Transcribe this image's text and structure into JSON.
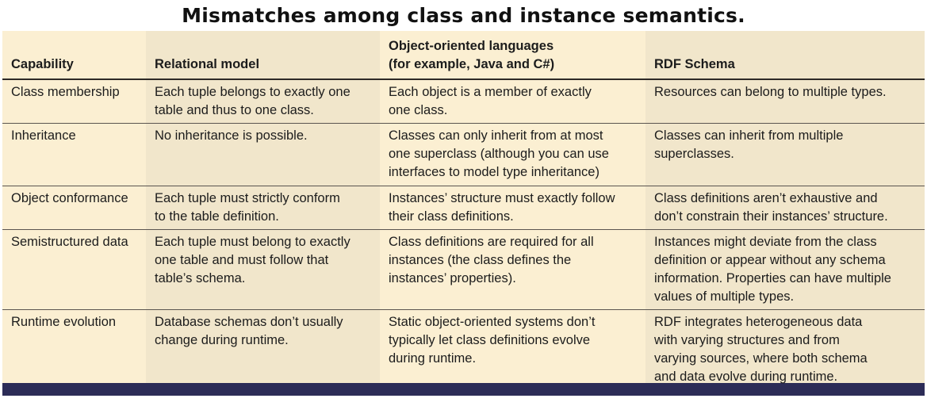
{
  "title": "Mismatches among class and instance semantics.",
  "headers": {
    "capability": "Capability",
    "relational": "Relational model",
    "oo_line1": "Object-oriented languages",
    "oo_line2": "(for example, Java and C#)",
    "rdf": "RDF Schema"
  },
  "rows": [
    {
      "capability": [
        "Class membership"
      ],
      "relational": [
        "Each tuple belongs to exactly one",
        "table and thus to one class."
      ],
      "oo": [
        "Each object is a member of exactly",
        "one class."
      ],
      "rdf": [
        "Resources can belong to multiple types."
      ]
    },
    {
      "capability": [
        "Inheritance"
      ],
      "relational": [
        "No inheritance is possible."
      ],
      "oo": [
        "Classes can only inherit from at most",
        "one superclass (although you can use",
        "interfaces to model type inheritance)"
      ],
      "rdf": [
        "Classes can inherit from multiple",
        "superclasses."
      ]
    },
    {
      "capability": [
        "Object conformance"
      ],
      "relational": [
        "Each tuple must strictly conform",
        "to the table definition."
      ],
      "oo": [
        "Instances’ structure must exactly follow",
        "their class definitions."
      ],
      "rdf": [
        "Class definitions aren’t exhaustive and",
        "don’t constrain their instances’ structure."
      ]
    },
    {
      "capability": [
        "Semistructured data"
      ],
      "relational": [
        "Each tuple must belong to exactly",
        "one table and must follow that",
        "table’s schema."
      ],
      "oo": [
        "Class definitions are required for all",
        "instances (the class defines the",
        "instances’ properties)."
      ],
      "rdf": [
        "Instances might deviate from the class",
        "definition or appear without any schema",
        "information. Properties can have multiple",
        "values of multiple types."
      ]
    },
    {
      "capability": [
        "Runtime evolution"
      ],
      "relational": [
        "Database schemas don’t usually",
        "change during runtime."
      ],
      "oo": [
        "Static object-oriented systems don’t",
        "typically let class definitions evolve",
        "during runtime."
      ],
      "rdf": [
        "RDF integrates heterogeneous data",
        "with varying structures and from",
        "varying sources, where both schema",
        "and data evolve during runtime."
      ]
    }
  ],
  "colors": {
    "column_light": "#fbefd2",
    "column_dark": "#f1e6cb",
    "bottom_bar": "#2c2c57"
  }
}
